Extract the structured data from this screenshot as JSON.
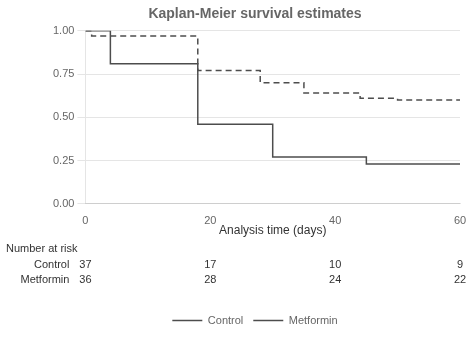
{
  "chart_data": {
    "type": "step",
    "title": "Kaplan-Meier survival estimates",
    "xlabel": "Analysis time (days)",
    "series": [
      {
        "name": "Control",
        "color": "#4d4d4d",
        "line_style": "solid",
        "x": [
          0,
          4,
          4,
          18,
          18,
          30,
          30,
          45,
          45,
          60
        ],
        "values": [
          1.0,
          1.0,
          0.81,
          0.81,
          0.46,
          0.46,
          0.27,
          0.27,
          0.23,
          0.23
        ]
      },
      {
        "name": "Metformin",
        "color": "#4d4d4d",
        "line_style": "dashed",
        "x": [
          0,
          1,
          1,
          18,
          18,
          28,
          28,
          35,
          35,
          44,
          44,
          50,
          50,
          60
        ],
        "values": [
          1.0,
          1.0,
          0.97,
          0.97,
          0.77,
          0.77,
          0.7,
          0.7,
          0.64,
          0.64,
          0.61,
          0.61,
          0.6,
          0.6
        ]
      }
    ],
    "xlim": [
      0,
      60
    ],
    "ylim": [
      0,
      1.0
    ],
    "xticks": [
      0,
      20,
      40,
      60
    ],
    "yticks": [
      {
        "value": 0,
        "label": "0.00"
      },
      {
        "value": 0.25,
        "label": "0.25"
      },
      {
        "value": 0.5,
        "label": "0.50"
      },
      {
        "value": 0.75,
        "label": "0.75"
      },
      {
        "value": 1.0,
        "label": "1.00"
      }
    ],
    "grid": "y",
    "legend": "bottom",
    "number_at_risk": {
      "label": "Number at risk",
      "groups": [
        "Control",
        "Metformin"
      ],
      "times": [
        0,
        20,
        40,
        60
      ],
      "values": [
        [
          37,
          17,
          10,
          9
        ],
        [
          36,
          28,
          24,
          22
        ]
      ]
    }
  }
}
